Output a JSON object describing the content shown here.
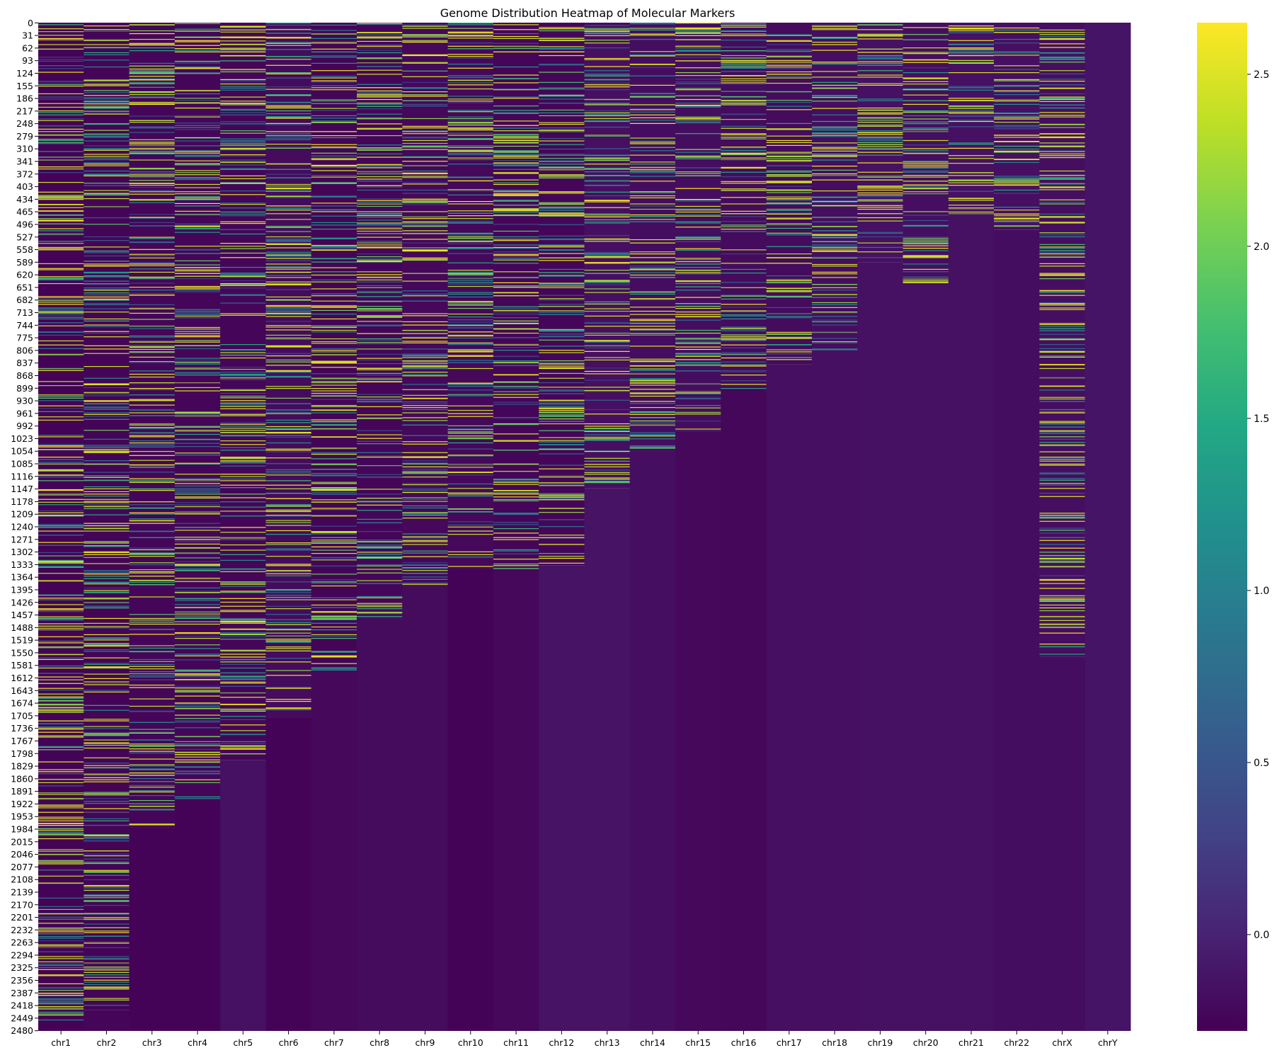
{
  "chart_data": {
    "type": "heatmap",
    "title": "Genome Distribution Heatmap of Molecular Markers",
    "xlabel": "",
    "ylabel": "",
    "colormap": "viridis",
    "colors": {
      "low": "#440154",
      "mid": "#21908d",
      "high": "#fde725",
      "background": "#ffffff",
      "text": "#000000"
    },
    "categories": [
      "chr1",
      "chr2",
      "chr3",
      "chr4",
      "chr5",
      "chr6",
      "chr7",
      "chr8",
      "chr9",
      "chr10",
      "chr11",
      "chr12",
      "chr13",
      "chr14",
      "chr15",
      "chr16",
      "chr17",
      "chr18",
      "chr19",
      "chr20",
      "chr21",
      "chr22",
      "chrX",
      "chrY"
    ],
    "row_ticks": [
      0,
      31,
      62,
      93,
      124,
      155,
      186,
      217,
      248,
      279,
      310,
      341,
      372,
      403,
      434,
      465,
      496,
      527,
      558,
      589,
      620,
      651,
      682,
      713,
      744,
      775,
      806,
      837,
      868,
      899,
      930,
      961,
      992,
      1023,
      1054,
      1085,
      1116,
      1147,
      1178,
      1209,
      1240,
      1271,
      1302,
      1333,
      1364,
      1395,
      1426,
      1457,
      1488,
      1519,
      1550,
      1581,
      1612,
      1643,
      1674,
      1705,
      1736,
      1767,
      1798,
      1829,
      1860,
      1891,
      1922,
      1953,
      1984,
      2015,
      2046,
      2077,
      2108,
      2139,
      2170,
      2201,
      2232,
      2263,
      2294,
      2325,
      2356,
      2387,
      2418,
      2449,
      2480
    ],
    "n_rows": 2481,
    "colorbar": {
      "min": -0.28,
      "max": 2.65,
      "ticks": [
        "0.0",
        "0.5",
        "1.0",
        "1.5",
        "2.0",
        "2.5"
      ],
      "tick_values": [
        0.0,
        0.5,
        1.0,
        1.5,
        2.0,
        2.5
      ]
    },
    "columns": [
      {
        "name": "chr1",
        "markers": 2481,
        "fill": -0.26,
        "nan_fill": -0.24
      },
      {
        "name": "chr2",
        "markers": 2430,
        "fill": -0.25,
        "nan_fill": -0.24
      },
      {
        "name": "chr3",
        "markers": 1980,
        "fill": -0.24,
        "nan_fill": -0.26
      },
      {
        "name": "chr4",
        "markers": 1910,
        "fill": -0.24,
        "nan_fill": -0.26
      },
      {
        "name": "chr5",
        "markers": 1815,
        "fill": -0.24,
        "nan_fill": -0.15
      },
      {
        "name": "chr6",
        "markers": 1710,
        "fill": -0.2,
        "nan_fill": -0.26
      },
      {
        "name": "chr7",
        "markers": 1595,
        "fill": -0.25,
        "nan_fill": -0.22
      },
      {
        "name": "chr8",
        "markers": 1465,
        "fill": -0.24,
        "nan_fill": -0.19
      },
      {
        "name": "chr9",
        "markers": 1385,
        "fill": -0.22,
        "nan_fill": -0.19
      },
      {
        "name": "chr10",
        "markers": 1345,
        "fill": -0.22,
        "nan_fill": -0.26
      },
      {
        "name": "chr11",
        "markers": 1345,
        "fill": -0.24,
        "nan_fill": -0.22
      },
      {
        "name": "chr12",
        "markers": 1335,
        "fill": -0.24,
        "nan_fill": -0.13
      },
      {
        "name": "chr13",
        "markers": 1145,
        "fill": -0.16,
        "nan_fill": -0.13
      },
      {
        "name": "chr14",
        "markers": 1055,
        "fill": -0.18,
        "nan_fill": -0.17
      },
      {
        "name": "chr15",
        "markers": 1005,
        "fill": -0.18,
        "nan_fill": -0.22
      },
      {
        "name": "chr16",
        "markers": 900,
        "fill": -0.2,
        "nan_fill": -0.23
      },
      {
        "name": "chr17",
        "markers": 840,
        "fill": -0.2,
        "nan_fill": -0.16
      },
      {
        "name": "chr18",
        "markers": 805,
        "fill": -0.17,
        "nan_fill": -0.16
      },
      {
        "name": "chr19",
        "markers": 590,
        "fill": -0.15,
        "nan_fill": -0.15
      },
      {
        "name": "chr20",
        "markers": 640,
        "fill": -0.17,
        "nan_fill": -0.15
      },
      {
        "name": "chr21",
        "markers": 470,
        "fill": -0.15,
        "nan_fill": -0.15
      },
      {
        "name": "chr22",
        "markers": 510,
        "fill": -0.16,
        "nan_fill": -0.18
      },
      {
        "name": "chrX",
        "markers": 1560,
        "fill": -0.17,
        "nan_fill": -0.18
      },
      {
        "name": "chrY",
        "markers": 0,
        "fill": -0.12,
        "nan_fill": -0.12
      }
    ]
  }
}
